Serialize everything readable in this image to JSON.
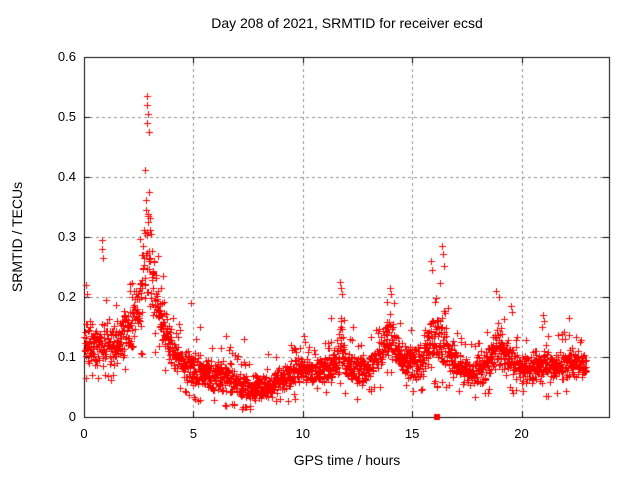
{
  "window": {
    "background": "#ffffff"
  },
  "chart_data": {
    "type": "scatter",
    "title": "Day 208 of 2021, SRMTID for receiver ecsd",
    "xlabel": "GPS time / hours",
    "ylabel": "SRMTID / TECUs",
    "xlim": [
      0,
      24
    ],
    "ylim": [
      0,
      0.6
    ],
    "xticks": [
      {
        "v": 0,
        "label": "0"
      },
      {
        "v": 5,
        "label": "5"
      },
      {
        "v": 10,
        "label": "10"
      },
      {
        "v": 15,
        "label": "15"
      },
      {
        "v": 20,
        "label": "20"
      }
    ],
    "yticks": [
      {
        "v": 0.0,
        "label": "0"
      },
      {
        "v": 0.1,
        "label": "0.1"
      },
      {
        "v": 0.2,
        "label": "0.2"
      },
      {
        "v": 0.3,
        "label": "0.3"
      },
      {
        "v": 0.4,
        "label": "0.4"
      },
      {
        "v": 0.5,
        "label": "0.5"
      },
      {
        "v": 0.6,
        "label": "0.6"
      }
    ],
    "grid": true,
    "legend": false,
    "colors": {
      "marker": "#ff0000",
      "grid": "#909090",
      "border": "#000000",
      "text": "#000000"
    },
    "series": [
      {
        "name": "SRMTID",
        "marker": "plus",
        "color": "#ff0000",
        "n_points": 2200,
        "t_range": [
          0.02,
          22.95
        ],
        "seed": 11,
        "band_envelope": [
          [
            0.0,
            0.075,
            0.18
          ],
          [
            0.5,
            0.07,
            0.17
          ],
          [
            1.0,
            0.07,
            0.19
          ],
          [
            1.5,
            0.075,
            0.18
          ],
          [
            2.0,
            0.09,
            0.2
          ],
          [
            2.4,
            0.1,
            0.24
          ],
          [
            2.6,
            0.11,
            0.3
          ],
          [
            2.8,
            0.13,
            0.4
          ],
          [
            2.9,
            0.14,
            0.46
          ],
          [
            3.0,
            0.14,
            0.42
          ],
          [
            3.1,
            0.13,
            0.34
          ],
          [
            3.3,
            0.11,
            0.28
          ],
          [
            3.6,
            0.09,
            0.22
          ],
          [
            3.9,
            0.07,
            0.17
          ],
          [
            4.2,
            0.06,
            0.15
          ],
          [
            4.6,
            0.05,
            0.13
          ],
          [
            5.0,
            0.04,
            0.12
          ],
          [
            5.5,
            0.035,
            0.11
          ],
          [
            6.0,
            0.03,
            0.1
          ],
          [
            6.5,
            0.03,
            0.11
          ],
          [
            7.0,
            0.025,
            0.09
          ],
          [
            7.5,
            0.02,
            0.08
          ],
          [
            8.0,
            0.02,
            0.075
          ],
          [
            8.5,
            0.025,
            0.08
          ],
          [
            9.0,
            0.035,
            0.09
          ],
          [
            9.5,
            0.04,
            0.1
          ],
          [
            10.0,
            0.045,
            0.11
          ],
          [
            10.5,
            0.05,
            0.1
          ],
          [
            11.0,
            0.05,
            0.11
          ],
          [
            11.5,
            0.05,
            0.12
          ],
          [
            11.75,
            0.06,
            0.2
          ],
          [
            12.0,
            0.05,
            0.12
          ],
          [
            12.5,
            0.04,
            0.11
          ],
          [
            13.0,
            0.05,
            0.12
          ],
          [
            13.5,
            0.06,
            0.14
          ],
          [
            13.9,
            0.08,
            0.19
          ],
          [
            14.15,
            0.08,
            0.18
          ],
          [
            14.5,
            0.06,
            0.14
          ],
          [
            15.0,
            0.05,
            0.13
          ],
          [
            15.5,
            0.05,
            0.15
          ],
          [
            15.9,
            0.06,
            0.21
          ],
          [
            16.2,
            0.06,
            0.23
          ],
          [
            16.45,
            0.06,
            0.2
          ],
          [
            16.8,
            0.05,
            0.14
          ],
          [
            17.2,
            0.05,
            0.12
          ],
          [
            17.7,
            0.04,
            0.11
          ],
          [
            18.2,
            0.04,
            0.12
          ],
          [
            18.6,
            0.05,
            0.14
          ],
          [
            18.9,
            0.07,
            0.18
          ],
          [
            19.2,
            0.06,
            0.15
          ],
          [
            19.6,
            0.05,
            0.13
          ],
          [
            20.0,
            0.045,
            0.12
          ],
          [
            20.5,
            0.05,
            0.12
          ],
          [
            21.0,
            0.04,
            0.14
          ],
          [
            21.5,
            0.04,
            0.12
          ],
          [
            22.0,
            0.05,
            0.13
          ],
          [
            22.5,
            0.055,
            0.12
          ],
          [
            22.95,
            0.06,
            0.11
          ]
        ],
        "outliers": [
          [
            0.1,
            0.22
          ],
          [
            0.15,
            0.205
          ],
          [
            0.82,
            0.295
          ],
          [
            0.84,
            0.28
          ],
          [
            0.86,
            0.265
          ],
          [
            1.0,
            0.195
          ],
          [
            2.1,
            0.21
          ],
          [
            2.87,
            0.49
          ],
          [
            2.88,
            0.535
          ],
          [
            2.9,
            0.52
          ],
          [
            2.92,
            0.505
          ],
          [
            2.95,
            0.475
          ],
          [
            4.9,
            0.19
          ],
          [
            5.3,
            0.15
          ],
          [
            6.5,
            0.135
          ],
          [
            7.3,
            0.13
          ],
          [
            8.4,
            0.105
          ],
          [
            9.45,
            0.12
          ],
          [
            9.6,
            0.115
          ],
          [
            10.05,
            0.135
          ],
          [
            10.1,
            0.125
          ],
          [
            11.3,
            0.165
          ],
          [
            11.72,
            0.225
          ],
          [
            11.76,
            0.215
          ],
          [
            11.8,
            0.205
          ],
          [
            12.3,
            0.15
          ],
          [
            14.0,
            0.215
          ],
          [
            14.05,
            0.205
          ],
          [
            15.85,
            0.26
          ],
          [
            15.9,
            0.245
          ],
          [
            16.35,
            0.285
          ],
          [
            16.4,
            0.272
          ],
          [
            16.45,
            0.252
          ],
          [
            18.85,
            0.21
          ],
          [
            18.95,
            0.2
          ],
          [
            19.5,
            0.185
          ],
          [
            19.55,
            0.175
          ],
          [
            20.95,
            0.15
          ],
          [
            21.0,
            0.17
          ],
          [
            21.05,
            0.16
          ],
          [
            22.15,
            0.165
          ]
        ]
      },
      {
        "name": "axis-marker",
        "marker": "filled-square",
        "color": "#ff0000",
        "points": [
          [
            16.15,
            0.0
          ]
        ]
      }
    ]
  }
}
